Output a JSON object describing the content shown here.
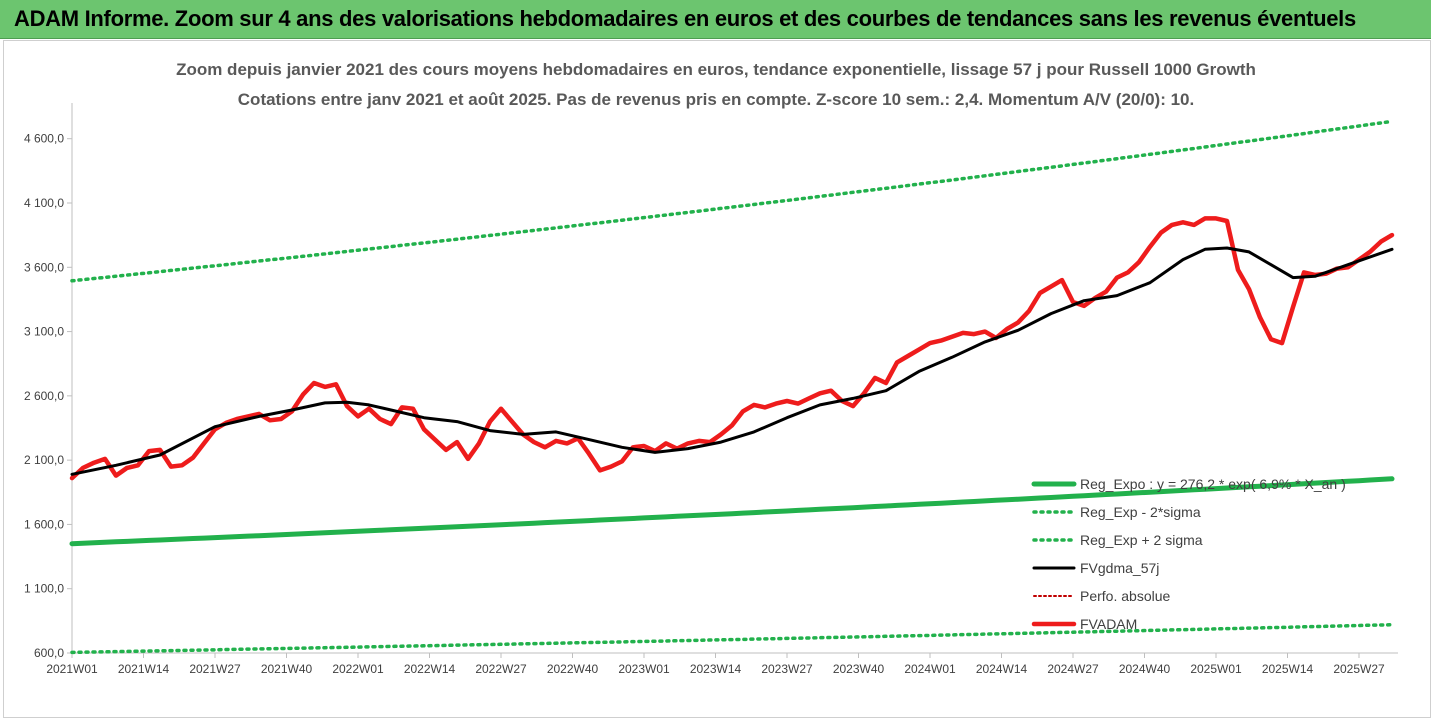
{
  "banner": {
    "title": "ADAM Informe. Zoom sur 4 ans des valorisations hebdomadaires en euros et des courbes de tendances sans les revenus éventuels"
  },
  "colors": {
    "banner_bg": "#6cc56f",
    "reg_expo": "#22b14c",
    "sigma": "#22b14c",
    "fvgdma": "#000000",
    "perfo": "#c00000",
    "fvadam": "#ee1c1c"
  },
  "chart_data": {
    "type": "line",
    "title": "Zoom depuis janvier 2021 des cours moyens hebdomadaires en euros, tendance exponentielle, lissage 57 j pour Russell 1000 Growth",
    "subtitle": "Cotations entre janv 2021 et août 2025. Pas de revenus pris en compte. Z-score 10 sem.: 2,4. Momentum A/V (20/0): 10.",
    "grid": false,
    "legend_placement": "bottom-right",
    "ylim": [
      600,
      4800
    ],
    "y_ticks": [
      "600,0",
      "1 100,0",
      "1 600,0",
      "2 100,0",
      "2 600,0",
      "3 100,0",
      "3 600,0",
      "4 100,0",
      "4 600,0"
    ],
    "y_tick_values": [
      600,
      1100,
      1600,
      2100,
      2600,
      3100,
      3600,
      4100,
      4600
    ],
    "x_ticks": [
      "2021W01",
      "2021W14",
      "2021W27",
      "2021W40",
      "2022W01",
      "2022W14",
      "2022W27",
      "2022W40",
      "2023W01",
      "2023W14",
      "2023W27",
      "2023W40",
      "2024W01",
      "2024W14",
      "2024W27",
      "2024W40",
      "2025W01",
      "2025W14",
      "2025W27"
    ],
    "x_tick_weeks": [
      0,
      13,
      26,
      39,
      52,
      65,
      78,
      91,
      104,
      117,
      130,
      143,
      156,
      169,
      182,
      195,
      208,
      221,
      234
    ],
    "x_max_week": 240,
    "series": [
      {
        "name": "Reg_Expo : y = 276,2 * exp( 6,9% * X_an )",
        "style": "solid-thick",
        "x": [
          0,
          240
        ],
        "y": [
          1450,
          1955
        ],
        "curve": "exponential"
      },
      {
        "name": "Reg_Exp - 2*sigma",
        "style": "dotted",
        "x": [
          0,
          240
        ],
        "y": [
          605,
          820
        ],
        "curve": "exponential"
      },
      {
        "name": "Reg_Exp + 2 sigma",
        "style": "dotted",
        "x": [
          0,
          240
        ],
        "y": [
          3495,
          4735
        ],
        "curve": "exponential"
      },
      {
        "name": "FVgdma_57j",
        "style": "solid",
        "x": [
          0,
          8,
          16,
          26,
          34,
          40,
          46,
          50,
          54,
          58,
          64,
          70,
          76,
          82,
          88,
          94,
          100,
          106,
          112,
          118,
          124,
          130,
          136,
          142,
          148,
          154,
          160,
          166,
          172,
          178,
          184,
          190,
          196,
          202,
          206,
          210,
          214,
          218,
          222,
          226,
          232,
          240
        ],
        "y": [
          1990,
          2060,
          2140,
          2360,
          2440,
          2490,
          2545,
          2550,
          2530,
          2490,
          2430,
          2400,
          2330,
          2300,
          2320,
          2260,
          2200,
          2160,
          2190,
          2240,
          2320,
          2430,
          2530,
          2580,
          2640,
          2790,
          2900,
          3020,
          3110,
          3240,
          3340,
          3380,
          3480,
          3660,
          3740,
          3750,
          3720,
          3620,
          3520,
          3530,
          3620,
          3740
        ]
      },
      {
        "name": "Perfo. absolue",
        "style": "dotted",
        "x": [],
        "y": []
      },
      {
        "name": "FVADAM",
        "style": "solid-thick",
        "x": [
          0,
          2,
          4,
          6,
          8,
          10,
          12,
          14,
          16,
          18,
          20,
          22,
          24,
          26,
          28,
          30,
          32,
          34,
          36,
          38,
          40,
          42,
          44,
          46,
          48,
          50,
          52,
          54,
          56,
          58,
          60,
          62,
          64,
          66,
          68,
          70,
          72,
          74,
          76,
          78,
          80,
          82,
          84,
          86,
          88,
          90,
          92,
          94,
          96,
          98,
          100,
          102,
          104,
          106,
          108,
          110,
          112,
          114,
          116,
          118,
          120,
          122,
          124,
          126,
          128,
          130,
          132,
          134,
          136,
          138,
          140,
          142,
          144,
          146,
          148,
          150,
          152,
          154,
          156,
          158,
          160,
          162,
          164,
          166,
          168,
          170,
          172,
          174,
          176,
          178,
          180,
          182,
          184,
          186,
          188,
          190,
          192,
          194,
          196,
          198,
          200,
          202,
          204,
          206,
          208,
          210,
          212,
          214,
          216,
          218,
          220,
          222,
          224,
          226,
          228,
          230,
          232,
          234,
          236,
          238,
          240
        ],
        "y": [
          1960,
          2040,
          2080,
          2110,
          1980,
          2040,
          2060,
          2170,
          2180,
          2050,
          2060,
          2120,
          2230,
          2340,
          2390,
          2420,
          2440,
          2460,
          2410,
          2420,
          2480,
          2610,
          2700,
          2670,
          2690,
          2520,
          2440,
          2500,
          2420,
          2380,
          2510,
          2500,
          2340,
          2260,
          2180,
          2240,
          2110,
          2230,
          2400,
          2500,
          2400,
          2300,
          2240,
          2200,
          2250,
          2230,
          2270,
          2150,
          2020,
          2050,
          2090,
          2200,
          2210,
          2170,
          2230,
          2190,
          2230,
          2250,
          2240,
          2300,
          2370,
          2480,
          2530,
          2510,
          2540,
          2560,
          2540,
          2580,
          2620,
          2640,
          2560,
          2520,
          2620,
          2740,
          2700,
          2860,
          2910,
          2960,
          3010,
          3030,
          3060,
          3090,
          3080,
          3100,
          3050,
          3120,
          3170,
          3260,
          3400,
          3450,
          3500,
          3330,
          3300,
          3360,
          3410,
          3520,
          3560,
          3640,
          3760,
          3870,
          3930,
          3950,
          3930,
          3980,
          3980,
          3960,
          3580,
          3430,
          3210,
          3040,
          3010,
          3290,
          3560,
          3540,
          3550,
          3590,
          3600,
          3660,
          3720,
          3800,
          3850
        ]
      }
    ]
  }
}
